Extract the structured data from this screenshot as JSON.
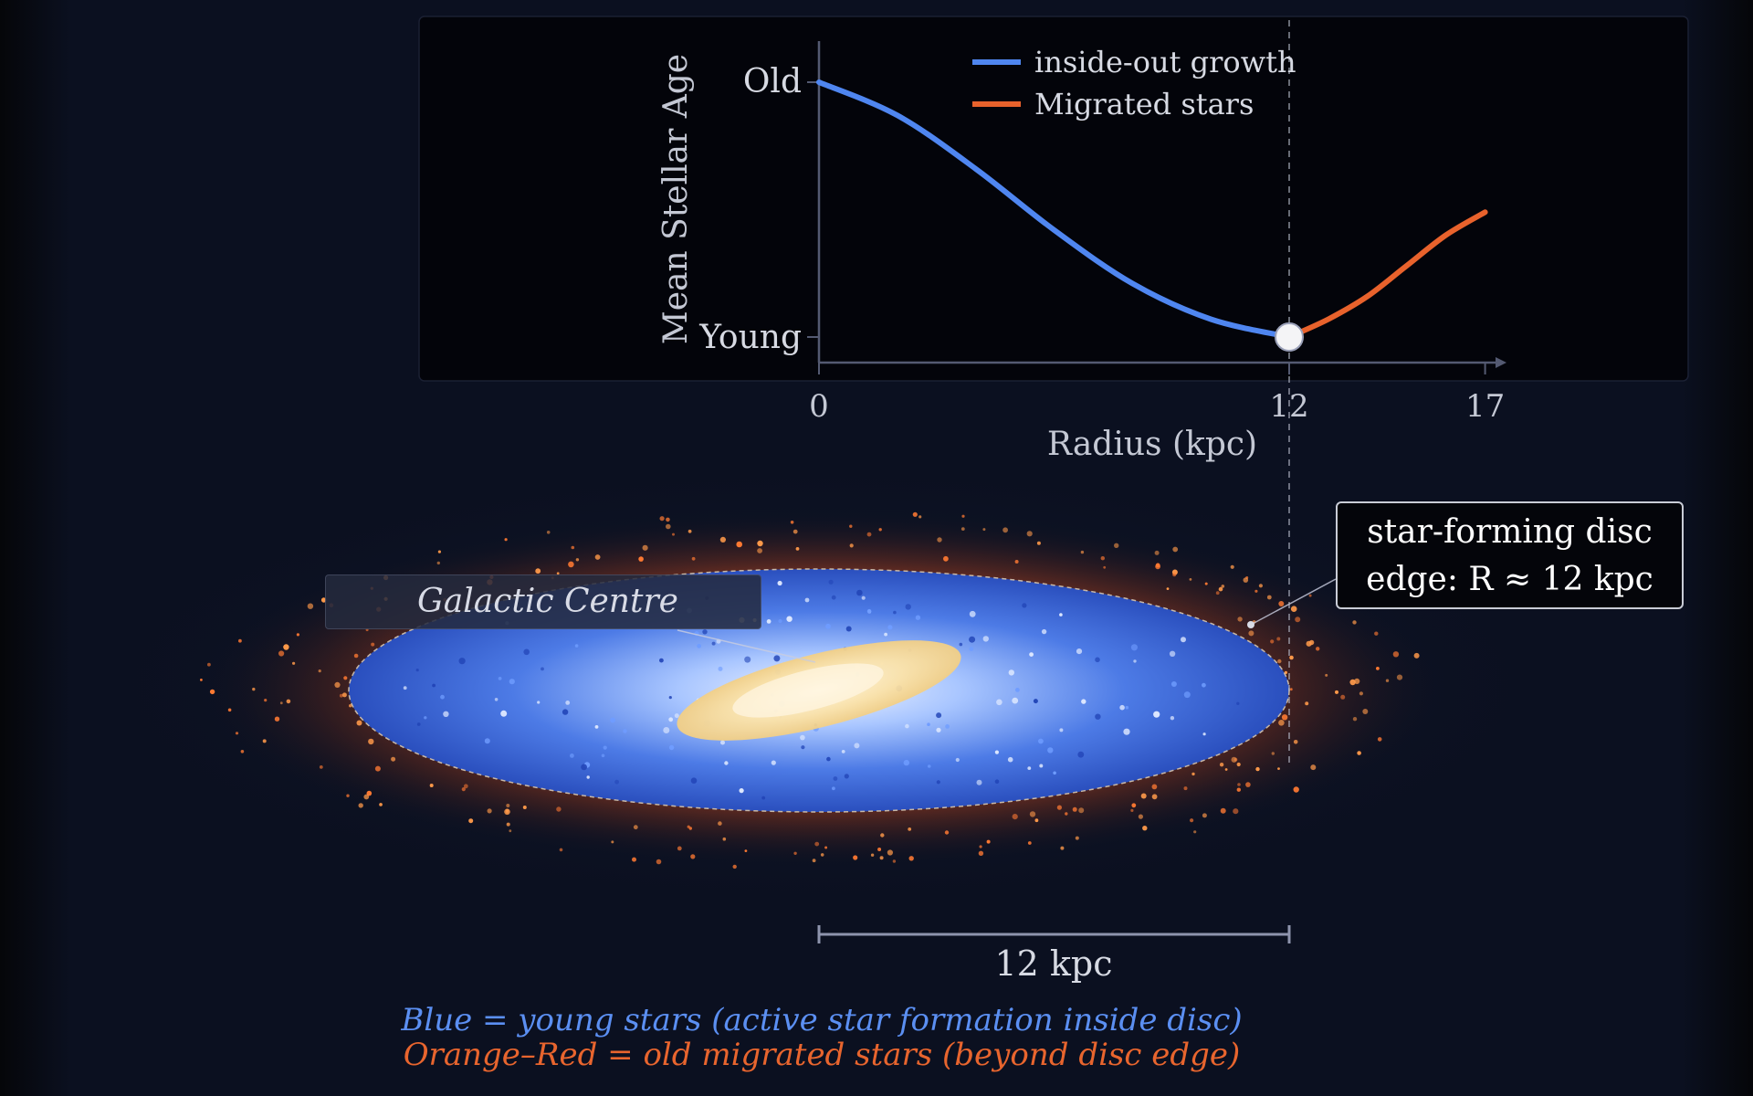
{
  "chart_data": {
    "type": "line",
    "ylabel": "Mean Stellar Age",
    "xlabel": "Radius (kpc)",
    "y_tick_labels": [
      "Old",
      "Young"
    ],
    "x_ticks": [
      0,
      12,
      17
    ],
    "xlim": [
      0,
      17
    ],
    "series": [
      {
        "name": "inside-out growth",
        "color": "#4f86f0",
        "x": [
          0,
          2,
          4,
          6,
          8,
          10,
          12
        ],
        "y": [
          1.0,
          0.87,
          0.66,
          0.42,
          0.21,
          0.07,
          0.0
        ]
      },
      {
        "name": "Migrated stars",
        "color": "#e8622c",
        "x": [
          12,
          13,
          14,
          15,
          16,
          17
        ],
        "y": [
          0.0,
          0.07,
          0.16,
          0.28,
          0.4,
          0.49
        ]
      }
    ],
    "highlight_point": {
      "x": 12,
      "y": 0.0
    },
    "grid": false,
    "legend_position": "top-center"
  },
  "diagram": {
    "centre_label": "Galactic Centre",
    "edge_label_line1": "star-forming disc",
    "edge_label_line2": "edge: R ≈ 12 kpc",
    "scale_bar_label": "12 kpc",
    "caption_line1": "Blue = young stars (active star formation inside disc)",
    "caption_line2": "Orange–Red = old migrated stars (beyond disc edge)"
  },
  "colors": {
    "young": "#4f86f0",
    "migrated": "#e8622c",
    "bulge": "#f5d89a",
    "background": "#0b1020"
  }
}
